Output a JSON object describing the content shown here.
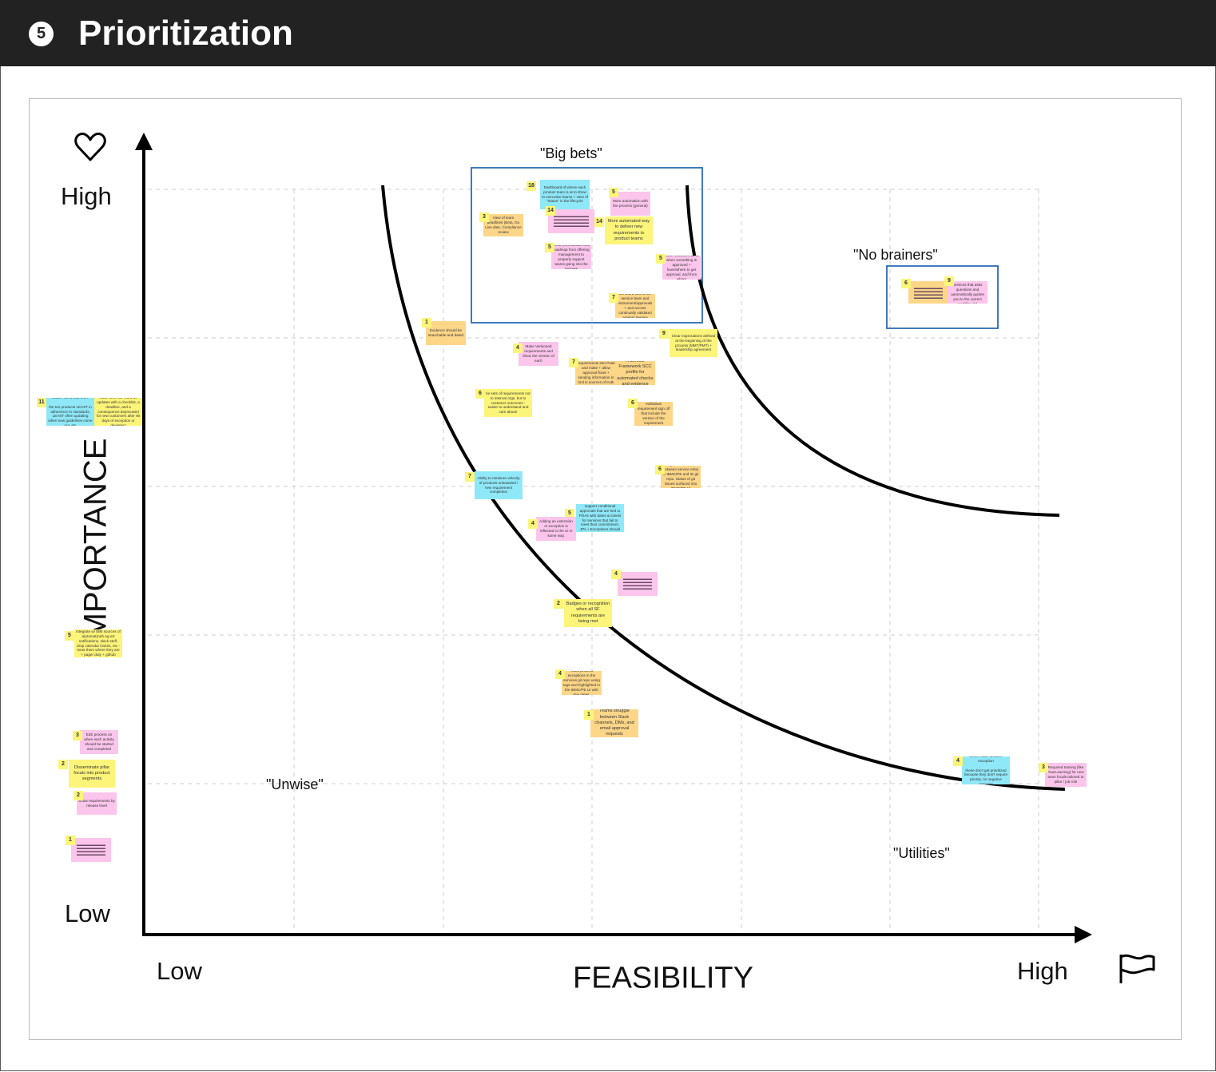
{
  "header": {
    "step": "5",
    "title": "Prioritization"
  },
  "axes": {
    "y_title": "IMPORTANCE",
    "y_high": "High",
    "y_low": "Low",
    "x_title": "FEASIBILITY",
    "x_low": "Low",
    "x_high": "High",
    "y_icon": "heart-icon",
    "x_icon": "flag-icon"
  },
  "quadrants": {
    "big_bets": "\"Big bets\"",
    "no_brainers": "\"No brainers\"",
    "unwise": "\"Unwise\"",
    "utilities": "\"Utilities\""
  },
  "colors": {
    "yellow": "#fdf47a",
    "pink": "#fcc5ec",
    "orange": "#fdd688",
    "blue": "#8fe8f8",
    "box": "#2b6cb5"
  },
  "stickies": [
    {
      "badge": "18",
      "color": "blue",
      "text": "Dashboard of where each product team is at to show to executive teams + view of \"status\" in the lifecycle"
    },
    {
      "badge": "14",
      "color": "pink",
      "text": "",
      "redacted": true
    },
    {
      "badge": "3",
      "color": "orange",
      "text": "View of team deadlines (Beta, Go Live date, Compliance review"
    },
    {
      "badge": "5",
      "color": "pink",
      "text": "More automation with the process (general)"
    },
    {
      "badge": "14",
      "color": "yellow",
      "text": "More automated way to deliver new requirements to product teams"
    },
    {
      "badge": "5",
      "color": "pink",
      "text": "Clear prioritization and roadmap from offering management to properly support teams going into the process"
    },
    {
      "badge": "5",
      "color": "pink",
      "text": "Clear indicators as to when something is approved + have/where to get approval, and from whom"
    },
    {
      "badge": "7",
      "color": "orange",
      "text": "Provide git repo used to record info to the service team and instrument/approvals + and access continually validated against Service Contacts"
    },
    {
      "badge": "1",
      "color": "orange",
      "text": "Evidence should be searchable and dated"
    },
    {
      "badge": "4",
      "color": "pink",
      "text": "Make Versioned requirements and show the version of each"
    },
    {
      "badge": "9",
      "color": "yellow",
      "text": "Clear expectations defined at the beginning of the process (MMT/PMT) + leadership agreement"
    },
    {
      "badge": "7",
      "color": "orange",
      "text": "Incorporate as many requirements into Peak and make + allow approval flows + sending information to tool is sources of truth (other's systems)"
    },
    {
      "badge": "",
      "color": "orange",
      "text": "A Service Framework SCC profile for automated checks and evidence"
    },
    {
      "badge": "6",
      "color": "yellow",
      "text": "tie sets of requirements not to internal orgs, but to customer outcomes - easier to understand and care about!"
    },
    {
      "badge": "6",
      "color": "orange",
      "text": "Individual requirement sign off that include the version of the requirement"
    },
    {
      "badge": "6",
      "color": "orange",
      "text": "tight connection between service entry in IBMC/PE and its git repo. Status of git issues surfaced into IBMC/PE UI"
    },
    {
      "badge": "7",
      "color": "blue",
      "text": "Ability to measure velocity of products onboarded / new requirement completion"
    },
    {
      "badge": "5",
      "color": "blue",
      "text": "Provide capability to support conditional approvals that are tied to POAs with dates & tickets for services that fail to meet their commitment. JPs + Exceptions should be on a dashboard"
    },
    {
      "badge": "4",
      "color": "pink",
      "text": "Adding an extension or exception is reflected in the UI in some way."
    },
    {
      "badge": "4",
      "color": "pink",
      "text": "",
      "redacted": true
    },
    {
      "badge": "2",
      "color": "yellow",
      "text": "Badges or recognition when all SF requirements are being met"
    },
    {
      "badge": "4",
      "color": "orange",
      "text": "Track process exceptions in the services git repo using tags and highlighted in the IBMC/PE UI with due dates."
    },
    {
      "badge": "1",
      "color": "orange",
      "text": "Teams struggle between Slack channels, DMs, and email approval requests"
    },
    {
      "badge": "6",
      "color": "orange",
      "text": "",
      "redacted": true
    },
    {
      "badge": "9",
      "color": "pink",
      "text": "Create a Wizard for services that asks questions and automatically guides you to the correct workflow (s)"
    },
    {
      "badge": "4",
      "color": "blue",
      "text": "never make another exception\n\nthese don't get prioritized because they don't require priority, no negative outcome"
    },
    {
      "badge": "3",
      "color": "pink",
      "text": "Required training (like YourLearning) for new team focals tailored to pillar / job role"
    },
    {
      "badge": "11",
      "color": "blue",
      "text": "MOST WANTED LIST\n\nthe ten products LEAST in adherence to standards, LEAST often updating when new guidelines come out, etc"
    },
    {
      "badge": "",
      "color": "yellow",
      "text": "issue them as 'must-do updates with a checklist, a deadline, and a consequence deprecated for new customers after 90 days of exception or deviation'"
    },
    {
      "badge": "5",
      "color": "yellow",
      "text": "integrate w/ IBM sources of a(utomat)ruth eg w3 notifications, slack stuff, drop calendar invites, etc - meet them where they are + pager duty + github"
    },
    {
      "badge": "3",
      "color": "pink",
      "text": "E2E process on when each activity should be started and completed"
    },
    {
      "badge": "2",
      "color": "yellow",
      "text": "Disseminate pillar focals into product segments"
    },
    {
      "badge": "2",
      "color": "pink",
      "text": "Show requirements by release level"
    },
    {
      "badge": "1",
      "color": "pink",
      "text": "",
      "redacted": true
    }
  ]
}
